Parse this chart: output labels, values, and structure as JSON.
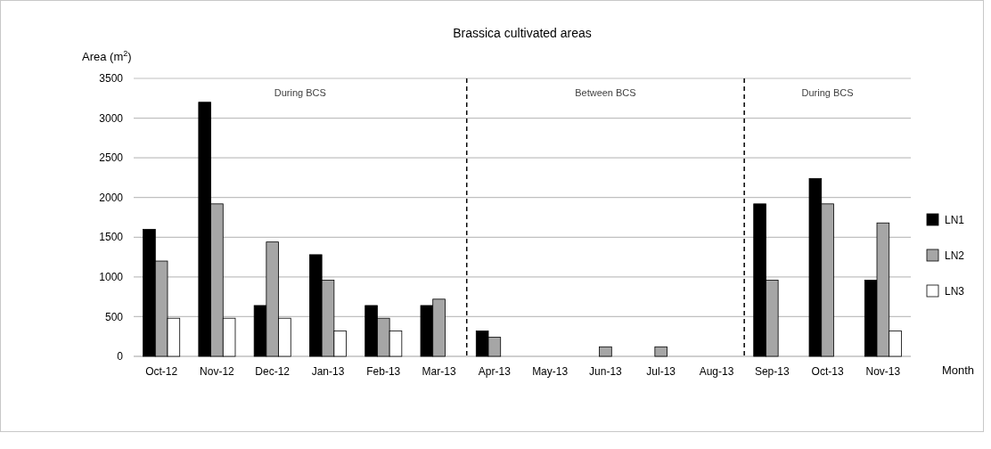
{
  "chart_data": {
    "type": "bar",
    "title": "Brassica cultivated areas",
    "xlabel": "Month",
    "ylabel": "Area (m$^{2}$)",
    "categories": [
      "Oct-12",
      "Nov-12",
      "Dec-12",
      "Jan-13",
      "Feb-13",
      "Mar-13",
      "Apr-13",
      "May-13",
      "Jun-13",
      "Jul-13",
      "Aug-13",
      "Sep-13",
      "Oct-13",
      "Nov-13"
    ],
    "series": [
      {
        "name": "LN1",
        "color": "#000000",
        "values": [
          1600,
          3200,
          640,
          1280,
          640,
          640,
          320,
          0,
          0,
          0,
          0,
          1920,
          2240,
          960
        ]
      },
      {
        "name": "LN2",
        "color": "#a6a6a6",
        "values": [
          1200,
          1920,
          1440,
          960,
          480,
          720,
          240,
          0,
          120,
          120,
          0,
          960,
          1920,
          1680
        ]
      },
      {
        "name": "LN3",
        "color": "#ffffff",
        "values": [
          480,
          480,
          480,
          320,
          320,
          0,
          0,
          0,
          0,
          0,
          0,
          0,
          0,
          320
        ]
      }
    ],
    "ylim": [
      0,
      3500
    ],
    "yticks": [
      0,
      500,
      1000,
      1500,
      2000,
      2500,
      3000,
      3500
    ],
    "grid": "y",
    "legend": "right",
    "annotations": [
      "During BCS",
      "Between BCS",
      "During BCS"
    ]
  }
}
